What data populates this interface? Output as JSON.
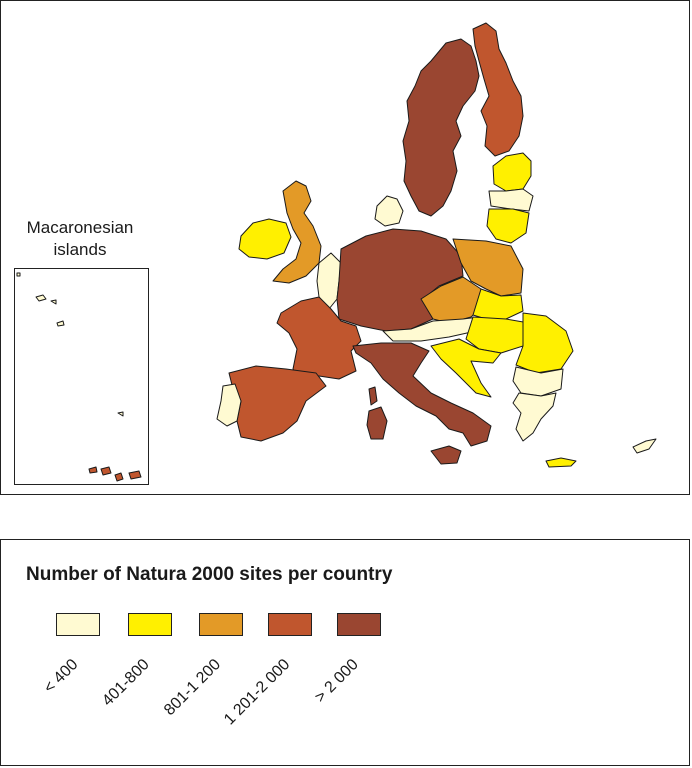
{
  "map": {
    "inset": {
      "line1": "Macaronesian",
      "line2": "islands"
    },
    "colors": {
      "class_1": "#fffad2",
      "class_2": "#fff000",
      "class_3": "#e39a27",
      "class_4": "#c0562e",
      "class_5": "#9a4631",
      "outline": "#1a1a1a"
    }
  },
  "legend": {
    "title": "Number of Natura 2000 sites per country",
    "items": [
      {
        "label": "< 400",
        "color": "#fffad2"
      },
      {
        "label": "401-800",
        "color": "#fff000"
      },
      {
        "label": "801-1 200",
        "color": "#e39a27"
      },
      {
        "label": "1 201-2 000",
        "color": "#c0562e"
      },
      {
        "label": "> 2 000",
        "color": "#9a4631"
      }
    ]
  }
}
